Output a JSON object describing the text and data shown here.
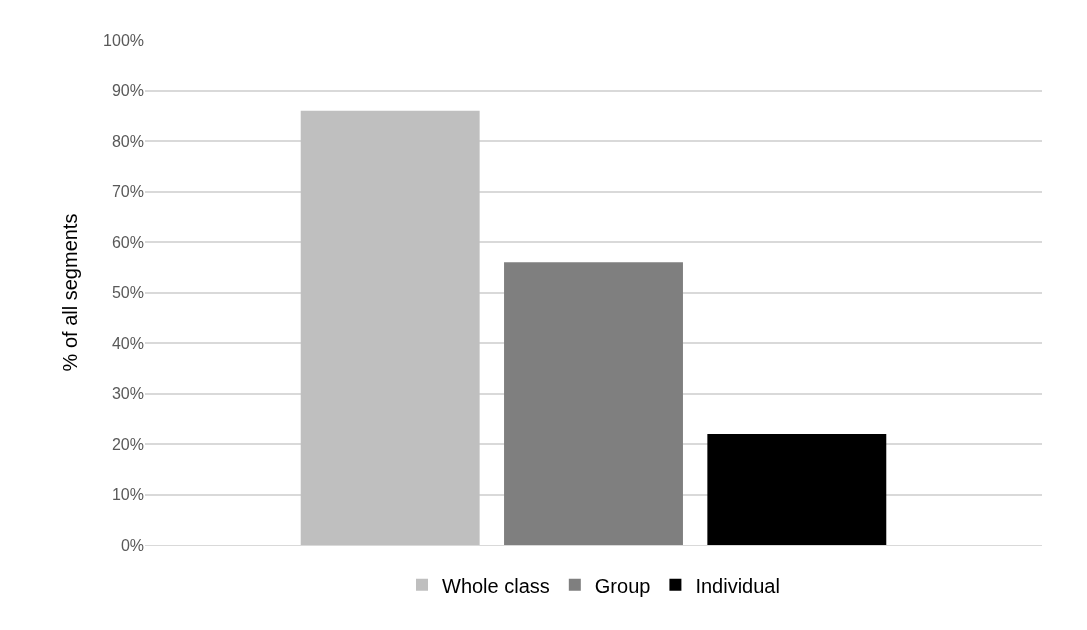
{
  "chart_data": {
    "type": "bar",
    "ylabel": "% of all segments",
    "categories": [
      null
    ],
    "series": [
      {
        "name": "Whole class",
        "color": "#bfbfbf",
        "values": [
          86
        ]
      },
      {
        "name": "Group",
        "color": "#7f7f7f",
        "values": [
          56
        ]
      },
      {
        "name": "Individual",
        "color": "#000000",
        "values": [
          22
        ]
      }
    ],
    "ylim": [
      0,
      100
    ],
    "yticks": [
      {
        "value": 0,
        "label": "0%"
      },
      {
        "value": 10,
        "label": "10%"
      },
      {
        "value": 20,
        "label": "20%"
      },
      {
        "value": 30,
        "label": "30%"
      },
      {
        "value": 40,
        "label": "40%"
      },
      {
        "value": 50,
        "label": "50%"
      },
      {
        "value": 60,
        "label": "60%"
      },
      {
        "value": 70,
        "label": "70%"
      },
      {
        "value": 80,
        "label": "80%"
      },
      {
        "value": 90,
        "label": "90%"
      },
      {
        "value": 100,
        "label": "100%"
      }
    ],
    "grid": "y",
    "legend": "bottom"
  }
}
